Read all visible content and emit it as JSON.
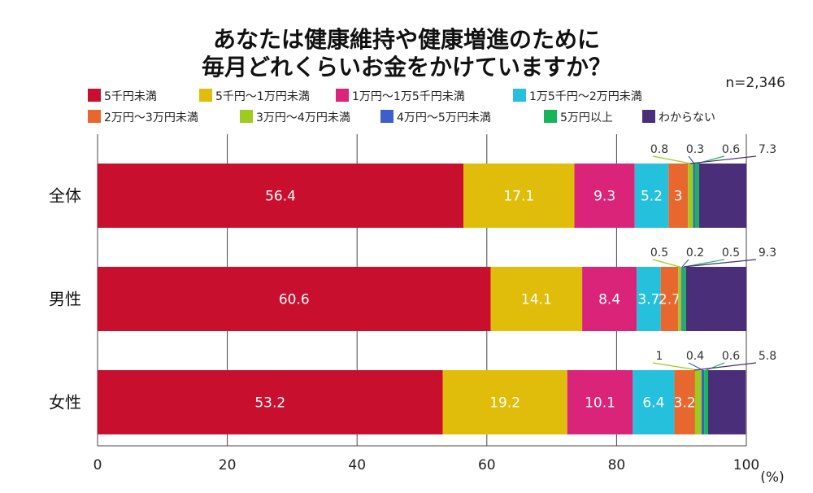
{
  "chart_data": {
    "type": "bar",
    "orientation": "horizontal",
    "stacked": true,
    "title": [
      "あなたは健康維持や健康増進のために",
      "毎月どれくらいお金をかけていますか？"
    ],
    "sample_size": "n=2,346",
    "unit_label": "(%)",
    "xlim": [
      0,
      100
    ],
    "xticks": [
      0,
      20,
      40,
      60,
      80,
      100
    ],
    "grid": true,
    "categories": [
      "全体",
      "男性",
      "女性"
    ],
    "series": [
      {
        "name": "5千円未満",
        "color": "#c8102e",
        "values": [
          56.4,
          60.6,
          53.2
        ]
      },
      {
        "name": "5千円～1万円未満",
        "color": "#e0bd0b",
        "values": [
          17.1,
          14.1,
          19.2
        ]
      },
      {
        "name": "1万円～1万5千円未満",
        "color": "#d9247a",
        "values": [
          9.3,
          8.4,
          10.1
        ]
      },
      {
        "name": "1万5千円～2万円未満",
        "color": "#25c1dc",
        "values": [
          5.2,
          3.7,
          6.4
        ]
      },
      {
        "name": "2万円～3万円未満",
        "color": "#e8672f",
        "values": [
          3,
          2.7,
          3.2
        ]
      },
      {
        "name": "3万円～4万円未満",
        "color": "#9ecb1f",
        "values": [
          0.8,
          0.5,
          1
        ]
      },
      {
        "name": "4万円～5万円未満",
        "color": "#3d5fc9",
        "values": [
          0.3,
          0.2,
          0.4
        ]
      },
      {
        "name": "5万円以上",
        "color": "#17b55a",
        "values": [
          0.6,
          0.5,
          0.6
        ]
      },
      {
        "name": "わからない",
        "color": "#4b2e7a",
        "values": [
          7.3,
          9.3,
          5.8
        ]
      }
    ],
    "value_labels": [
      [
        "56.4",
        "17.1",
        "9.3",
        "5.2",
        "3",
        "0.8",
        "0.3",
        "0.6",
        "7.3"
      ],
      [
        "60.6",
        "14.1",
        "8.4",
        "3.7",
        "2.7",
        "0.5",
        "0.2",
        "0.5",
        "9.3"
      ],
      [
        "53.2",
        "19.2",
        "10.1",
        "6.4",
        "3.2",
        "1",
        "0.4",
        "0.6",
        "5.8"
      ]
    ]
  }
}
